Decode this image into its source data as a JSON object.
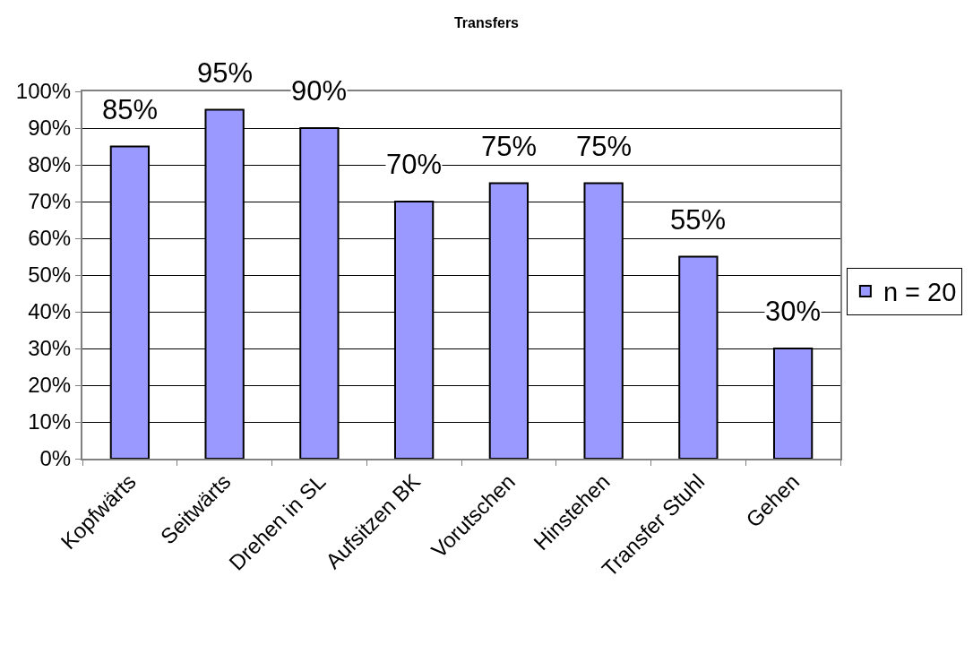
{
  "chart_data": {
    "type": "bar",
    "title": "Transfers",
    "categories": [
      "Kopfwärts",
      "Seitwärts",
      "Drehen in SL",
      "Aufsitzen BK",
      "Vorutschen",
      "Hinstehen",
      "Transfer Stuhl",
      "Gehen"
    ],
    "series": [
      {
        "name": "n = 20",
        "color": "#9999ff",
        "values": [
          85,
          95,
          90,
          70,
          75,
          75,
          55,
          30
        ],
        "value_labels": [
          "85%",
          "95%",
          "90%",
          "70%",
          "75%",
          "75%",
          "55%",
          "30%"
        ]
      }
    ],
    "ylim": [
      0,
      100
    ],
    "yticks": [
      {
        "value": 0,
        "label": "0%"
      },
      {
        "value": 10,
        "label": "10%"
      },
      {
        "value": 20,
        "label": "20%"
      },
      {
        "value": 30,
        "label": "30%"
      },
      {
        "value": 40,
        "label": "40%"
      },
      {
        "value": 50,
        "label": "50%"
      },
      {
        "value": 60,
        "label": "60%"
      },
      {
        "value": 70,
        "label": "70%"
      },
      {
        "value": 80,
        "label": "80%"
      },
      {
        "value": 90,
        "label": "90%"
      },
      {
        "value": 100,
        "label": "100%"
      }
    ],
    "grid": "y",
    "legend": "right"
  }
}
